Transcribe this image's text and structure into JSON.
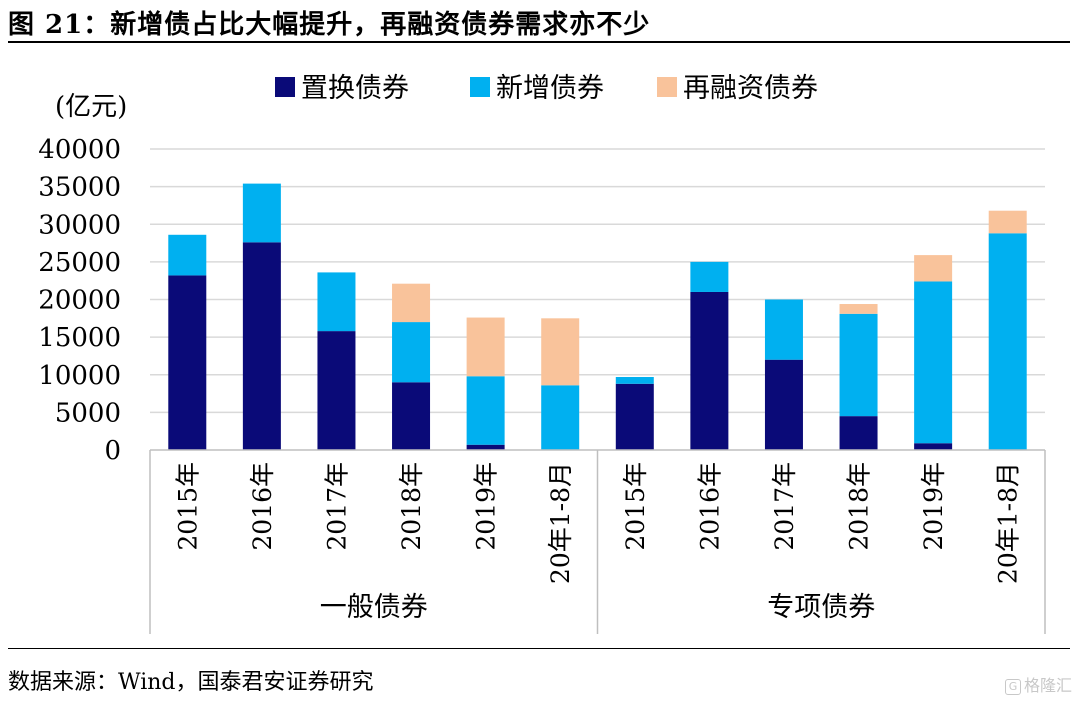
{
  "figure": {
    "title": "图 21：新增债占比大幅提升，再融资债券需求亦不少",
    "source": "数据来源：Wind，国泰君安证券研究",
    "watermark": "格隆汇",
    "watermark_icon": "logo-g-icon"
  },
  "chart_data": {
    "type": "bar",
    "stacked": true,
    "ylabel": "(亿元)",
    "ylim": [
      0,
      40000
    ],
    "yticks": [
      0,
      5000,
      10000,
      15000,
      20000,
      25000,
      30000,
      35000,
      40000
    ],
    "grid": true,
    "legend_position": "top",
    "groups": [
      {
        "label": "一般债券",
        "categories": [
          "2015年",
          "2016年",
          "2017年",
          "2018年",
          "2019年",
          "20年1-8月"
        ]
      },
      {
        "label": "专项债券",
        "categories": [
          "2015年",
          "2016年",
          "2017年",
          "2018年",
          "2019年",
          "20年1-8月"
        ]
      }
    ],
    "series": [
      {
        "name": "置换债券",
        "color": "#0a0a78",
        "values": [
          23200,
          27600,
          15800,
          9000,
          700,
          0,
          8800,
          21000,
          12000,
          4500,
          900,
          0
        ]
      },
      {
        "name": "新增债券",
        "color": "#00b0f0",
        "values": [
          5400,
          7800,
          7800,
          8000,
          9100,
          8600,
          900,
          4000,
          8000,
          13600,
          21500,
          28800
        ]
      },
      {
        "name": "再融资债券",
        "color": "#f9c39b",
        "values": [
          0,
          0,
          0,
          5100,
          7800,
          8900,
          0,
          0,
          0,
          1300,
          3500,
          3000
        ]
      }
    ]
  }
}
